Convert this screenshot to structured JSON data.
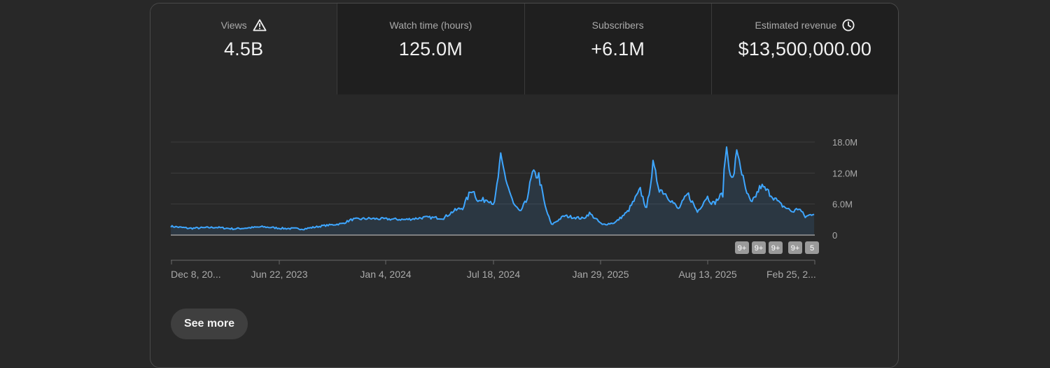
{
  "tabs": [
    {
      "label": "Views",
      "value": "4.5B",
      "icon": "warning-icon"
    },
    {
      "label": "Watch time (hours)",
      "value": "125.0M"
    },
    {
      "label": "Subscribers",
      "value": "+6.1M"
    },
    {
      "label": "Estimated revenue",
      "value": "$13,500,000.00",
      "icon": "clock-icon"
    }
  ],
  "chart_data": {
    "type": "area",
    "line_color": "#3ea6ff",
    "y_ticks": [
      "18.0M",
      "12.0M",
      "6.0M",
      "0"
    ],
    "y_tick_values": [
      18,
      12,
      6,
      0
    ],
    "ylim": [
      0,
      18
    ],
    "x_ticks": [
      "Dec 8, 20...",
      "Jun 22, 2023",
      "Jan 4, 2024",
      "Jul 18, 2024",
      "Jan 29, 2025",
      "Aug 13, 2025",
      "Feb 25, 2..."
    ],
    "badges": [
      "9+",
      "9+",
      "9+",
      "9+",
      "5"
    ],
    "keypoints": [
      [
        0,
        1.7
      ],
      [
        30,
        1.3
      ],
      [
        70,
        1.5
      ],
      [
        100,
        1.2
      ],
      [
        145,
        1.6
      ],
      [
        175,
        1.3
      ],
      [
        210,
        1.2
      ],
      [
        240,
        1.8
      ],
      [
        270,
        2.2
      ],
      [
        285,
        3.0
      ],
      [
        310,
        3.2
      ],
      [
        340,
        3.1
      ],
      [
        370,
        3.0
      ],
      [
        400,
        3.4
      ],
      [
        430,
        3.3
      ],
      [
        445,
        4.6
      ],
      [
        460,
        5.3
      ],
      [
        475,
        9.0
      ],
      [
        485,
        6.5
      ],
      [
        500,
        7.0
      ],
      [
        510,
        6.0
      ],
      [
        520,
        14.8
      ],
      [
        530,
        10.0
      ],
      [
        540,
        6.0
      ],
      [
        550,
        4.4
      ],
      [
        560,
        6.5
      ],
      [
        570,
        11.8
      ],
      [
        580,
        11.5
      ],
      [
        590,
        5.5
      ],
      [
        600,
        2.0
      ],
      [
        620,
        3.7
      ],
      [
        650,
        3.2
      ],
      [
        660,
        4.2
      ],
      [
        680,
        2.0
      ],
      [
        700,
        2.4
      ],
      [
        720,
        4.5
      ],
      [
        740,
        8.7
      ],
      [
        750,
        5.0
      ],
      [
        760,
        13.5
      ],
      [
        770,
        9.0
      ],
      [
        780,
        8.0
      ],
      [
        800,
        5.0
      ],
      [
        815,
        8.0
      ],
      [
        830,
        4.5
      ],
      [
        845,
        7.5
      ],
      [
        855,
        6.0
      ],
      [
        870,
        8.0
      ],
      [
        875,
        17.4
      ],
      [
        885,
        10.0
      ],
      [
        893,
        16.5
      ],
      [
        905,
        9.0
      ],
      [
        915,
        6.0
      ],
      [
        930,
        9.5
      ],
      [
        945,
        8.0
      ],
      [
        960,
        6.0
      ],
      [
        980,
        4.5
      ],
      [
        990,
        5.2
      ],
      [
        1000,
        3.5
      ],
      [
        1015,
        4.3
      ]
    ]
  },
  "footer": {
    "see_more_label": "See more"
  }
}
